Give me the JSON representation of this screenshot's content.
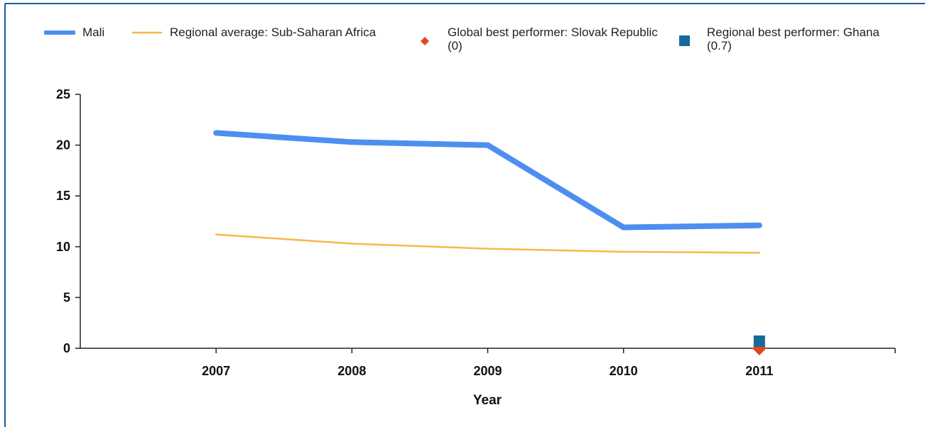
{
  "chart_data": {
    "type": "line",
    "x_label": "Year",
    "categories": [
      "2007",
      "2008",
      "2009",
      "2010",
      "2011"
    ],
    "series": [
      {
        "name": "Mali",
        "color": "#4d8ff0",
        "values": [
          21.2,
          20.3,
          20.0,
          11.9,
          12.1
        ]
      },
      {
        "name": "Regional average: Sub-Saharan Africa",
        "color": "#f8b84a",
        "values": [
          11.2,
          10.3,
          9.8,
          9.5,
          9.4
        ]
      },
      {
        "name": "Global best performer: Slovak Republic (0)",
        "color": "#e0481a",
        "marker": "diamond",
        "values": [
          null,
          null,
          null,
          null,
          0
        ]
      },
      {
        "name": "Regional best performer: Ghana (0.7)",
        "color": "#17699a",
        "marker": "square",
        "values": [
          null,
          null,
          null,
          null,
          0.7
        ]
      }
    ],
    "ylim": [
      0,
      25
    ],
    "yticks": [
      0,
      5,
      10,
      15,
      20,
      25
    ]
  }
}
